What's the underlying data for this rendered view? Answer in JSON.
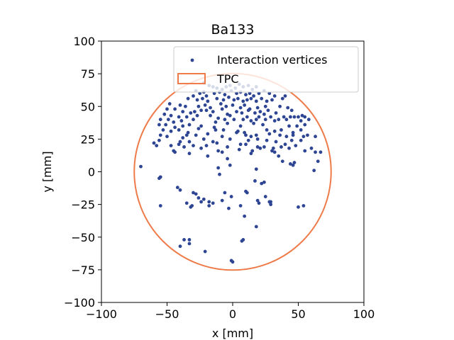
{
  "chart_data": {
    "type": "scatter",
    "title": "Ba133",
    "xlabel": "x [mm]",
    "ylabel": "y [mm]",
    "xlim": [
      -100,
      100
    ],
    "ylim": [
      -100,
      100
    ],
    "xticks": [
      "−100",
      "−50",
      "0",
      "50",
      "100"
    ],
    "yticks": [
      "−100",
      "−75",
      "−50",
      "−25",
      "0",
      "25",
      "50",
      "75",
      "100"
    ],
    "grid": false,
    "legend_placement": "top-right",
    "series": [
      {
        "name": "Interaction vertices",
        "kind": "scatter",
        "color": "#2e4593",
        "points": [
          [
            -22,
            68
          ],
          [
            -18,
            66
          ],
          [
            -15,
            65
          ],
          [
            -12,
            64
          ],
          [
            -8,
            63
          ],
          [
            -5,
            65
          ],
          [
            -2,
            66
          ],
          [
            2,
            64
          ],
          [
            5,
            67
          ],
          [
            8,
            65
          ],
          [
            12,
            66
          ],
          [
            15,
            63
          ],
          [
            18,
            65
          ],
          [
            -28,
            62
          ],
          [
            -25,
            60
          ],
          [
            -22,
            61
          ],
          [
            -20,
            58
          ],
          [
            -14,
            60
          ],
          [
            -10,
            61
          ],
          [
            -6,
            59
          ],
          [
            -1,
            62
          ],
          [
            3,
            60
          ],
          [
            6,
            61
          ],
          [
            10,
            59
          ],
          [
            13,
            60
          ],
          [
            16,
            58
          ],
          [
            20,
            60
          ],
          [
            24,
            62
          ],
          [
            28,
            60
          ],
          [
            32,
            58
          ],
          [
            -30,
            58
          ],
          [
            -34,
            56
          ],
          [
            -27,
            55
          ],
          [
            -23,
            56
          ],
          [
            -19,
            54
          ],
          [
            -12,
            56
          ],
          [
            -7,
            55
          ],
          [
            -3,
            57
          ],
          [
            1,
            55
          ],
          [
            4,
            56
          ],
          [
            8,
            54
          ],
          [
            11,
            55
          ],
          [
            14,
            56
          ],
          [
            18,
            54
          ],
          [
            22,
            56
          ],
          [
            26,
            54
          ],
          [
            30,
            55
          ],
          [
            38,
            56
          ],
          [
            40,
            58
          ],
          [
            -48,
            52
          ],
          [
            -40,
            51
          ],
          [
            -36,
            50
          ],
          [
            -26,
            50
          ],
          [
            -21,
            51
          ],
          [
            -17,
            49
          ],
          [
            -9,
            52
          ],
          [
            -5,
            50
          ],
          [
            0,
            51
          ],
          [
            6,
            49
          ],
          [
            9,
            51
          ],
          [
            13,
            48
          ],
          [
            19,
            49
          ],
          [
            25,
            50
          ],
          [
            36,
            50
          ],
          [
            42,
            49
          ],
          [
            -50,
            48
          ],
          [
            -44,
            48
          ],
          [
            -38,
            46
          ],
          [
            -32,
            45
          ],
          [
            -29,
            46
          ],
          [
            -24,
            47
          ],
          [
            -20,
            47
          ],
          [
            -15,
            46
          ],
          [
            -8,
            48
          ],
          [
            -4,
            44
          ],
          [
            3,
            46
          ],
          [
            7,
            45
          ],
          [
            12,
            47
          ],
          [
            17,
            45
          ],
          [
            21,
            46
          ],
          [
            27,
            47
          ],
          [
            33,
            45
          ],
          [
            45,
            47
          ],
          [
            -52,
            44
          ],
          [
            -47,
            43
          ],
          [
            -41,
            42
          ],
          [
            -35,
            42
          ],
          [
            -27,
            43
          ],
          [
            -17,
            43
          ],
          [
            -11,
            41
          ],
          [
            -2,
            43
          ],
          [
            11,
            42
          ],
          [
            20,
            42
          ],
          [
            24,
            44
          ],
          [
            29,
            42
          ],
          [
            39,
            42
          ],
          [
            44,
            42
          ],
          [
            47,
            42
          ],
          [
            50,
            42
          ],
          [
            53,
            43
          ],
          [
            55,
            42
          ],
          [
            58,
            40
          ],
          [
            -55,
            40
          ],
          [
            -49,
            40
          ],
          [
            -45,
            38
          ],
          [
            -39,
            39
          ],
          [
            -30,
            40
          ],
          [
            -13,
            38
          ],
          [
            -6,
            40
          ],
          [
            1,
            40
          ],
          [
            8,
            40
          ],
          [
            14,
            39
          ],
          [
            18,
            40
          ],
          [
            25,
            40
          ],
          [
            32,
            39
          ],
          [
            35,
            40
          ],
          [
            41,
            40
          ],
          [
            52,
            39
          ],
          [
            -56,
            36
          ],
          [
            -51,
            36
          ],
          [
            -44,
            34
          ],
          [
            -38,
            35
          ],
          [
            -33,
            36
          ],
          [
            -24,
            35
          ],
          [
            -14,
            34
          ],
          [
            -4,
            37
          ],
          [
            6,
            35
          ],
          [
            16,
            37
          ],
          [
            23,
            36
          ],
          [
            43,
            35
          ],
          [
            49,
            35
          ],
          [
            55,
            36
          ],
          [
            -53,
            32
          ],
          [
            -47,
            31
          ],
          [
            -41,
            32
          ],
          [
            -34,
            30
          ],
          [
            -26,
            33
          ],
          [
            -13,
            32
          ],
          [
            -7,
            32
          ],
          [
            4,
            31
          ],
          [
            9,
            30
          ],
          [
            26,
            32
          ],
          [
            32,
            31
          ],
          [
            37,
            32
          ],
          [
            46,
            30
          ],
          [
            52,
            32
          ],
          [
            -55,
            28
          ],
          [
            -50,
            27
          ],
          [
            -38,
            26
          ],
          [
            -35,
            28
          ],
          [
            -28,
            28
          ],
          [
            -19,
            29
          ],
          [
            -8,
            27
          ],
          [
            3,
            30
          ],
          [
            10,
            28
          ],
          [
            14,
            27
          ],
          [
            18,
            28
          ],
          [
            28,
            29
          ],
          [
            36,
            28
          ],
          [
            41,
            27
          ],
          [
            46,
            28
          ],
          [
            54,
            27
          ],
          [
            57,
            28
          ],
          [
            63,
            27
          ],
          [
            -56,
            24
          ],
          [
            -40,
            23
          ],
          [
            -33,
            23
          ],
          [
            -22,
            25
          ],
          [
            -15,
            23
          ],
          [
            -2,
            25
          ],
          [
            12,
            24
          ],
          [
            19,
            25
          ],
          [
            26,
            24
          ],
          [
            33,
            23
          ],
          [
            45,
            24
          ],
          [
            52,
            24
          ],
          [
            -47,
            20
          ],
          [
            -41,
            21
          ],
          [
            -37,
            19
          ],
          [
            -30,
            20
          ],
          [
            -20,
            20
          ],
          [
            -12,
            22
          ],
          [
            -4,
            19
          ],
          [
            6,
            21
          ],
          [
            10,
            21
          ],
          [
            19,
            19
          ],
          [
            24,
            19
          ],
          [
            31,
            18
          ],
          [
            40,
            21
          ],
          [
            48,
            20
          ],
          [
            -58,
            20
          ],
          [
            -60,
            22
          ],
          [
            -45,
            16
          ],
          [
            -24,
            18
          ],
          [
            -11,
            16
          ],
          [
            -8,
            15
          ],
          [
            5,
            17
          ],
          [
            15,
            16
          ],
          [
            21,
            18
          ],
          [
            30,
            16
          ],
          [
            43,
            18
          ],
          [
            60,
            18
          ],
          [
            63,
            15
          ],
          [
            67,
            15
          ],
          [
            -44,
            15
          ],
          [
            -33,
            14
          ],
          [
            -19,
            12
          ],
          [
            14,
            14
          ],
          [
            32,
            15
          ],
          [
            37,
            19
          ],
          [
            55,
            16
          ],
          [
            65,
            8
          ],
          [
            47,
            7
          ],
          [
            46,
            5
          ],
          [
            35,
            12
          ],
          [
            -70,
            4
          ],
          [
            -11,
            3
          ],
          [
            -2,
            5
          ],
          [
            -4,
            10
          ],
          [
            18,
            2
          ],
          [
            38,
            8
          ],
          [
            44,
            6
          ],
          [
            62,
            1
          ],
          [
            -55,
            -4
          ],
          [
            -56,
            -5
          ],
          [
            -10,
            -2
          ],
          [
            17,
            -7
          ],
          [
            -42,
            -12
          ],
          [
            -6,
            -16
          ],
          [
            22,
            -9
          ],
          [
            24,
            -8
          ],
          [
            -30,
            -16
          ],
          [
            -40,
            -14
          ],
          [
            -1,
            -19
          ],
          [
            10,
            -15
          ],
          [
            11,
            -16
          ],
          [
            -28,
            -17
          ],
          [
            19,
            -22
          ],
          [
            20,
            -24
          ],
          [
            28,
            -23
          ],
          [
            -8,
            -22
          ],
          [
            -22,
            -21
          ],
          [
            -26,
            -20
          ],
          [
            -3,
            -28
          ],
          [
            25,
            -19
          ],
          [
            29,
            -23
          ],
          [
            -35,
            -24
          ],
          [
            -31,
            -26
          ],
          [
            -55,
            -26
          ],
          [
            -18,
            -26
          ],
          [
            -15,
            -24
          ],
          [
            -24,
            -23
          ],
          [
            -18,
            -23
          ],
          [
            6,
            -26
          ],
          [
            29,
            -25
          ],
          [
            50,
            -27
          ],
          [
            54,
            -26
          ],
          [
            -32,
            -27
          ],
          [
            9,
            -34
          ],
          [
            18,
            -42
          ],
          [
            -37,
            -52
          ],
          [
            -33,
            -52
          ],
          [
            7,
            -53
          ],
          [
            8,
            -52
          ],
          [
            -33,
            -55
          ],
          [
            -40,
            -57
          ],
          [
            -21,
            -61
          ],
          [
            -1,
            -68
          ],
          [
            0,
            -69
          ]
        ]
      },
      {
        "name": "TPC",
        "kind": "circle",
        "color": "#ee7b49",
        "radius": 75,
        "center": [
          0,
          0
        ]
      }
    ]
  }
}
